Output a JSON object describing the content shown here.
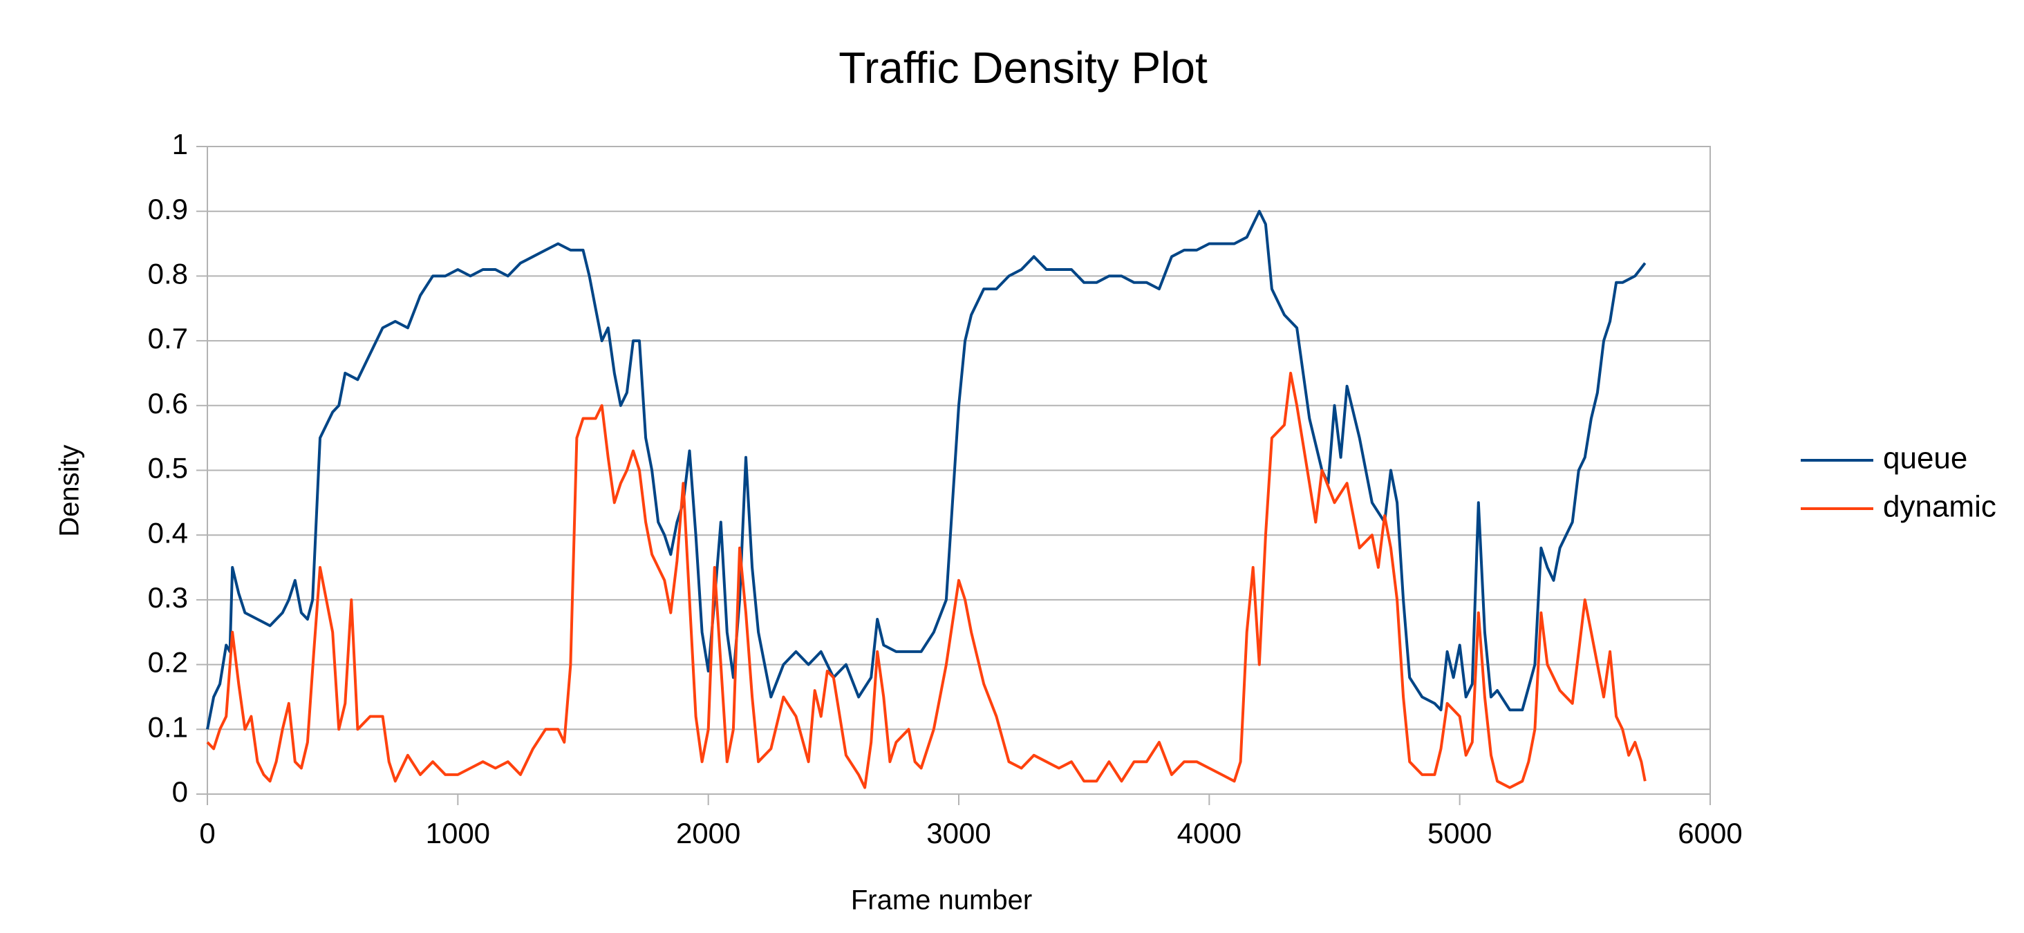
{
  "chart_data": {
    "type": "line",
    "title": "Traffic Density Plot",
    "x_label": "Frame number",
    "y_label": "Density",
    "xlim": [
      0,
      6000
    ],
    "xticks": [
      0,
      1000,
      2000,
      3000,
      4000,
      5000,
      6000
    ],
    "ylim": [
      0,
      1
    ],
    "yticks": [
      0,
      0.1,
      0.2,
      0.3,
      0.4,
      0.5,
      0.6,
      0.7,
      0.8,
      0.9,
      1
    ],
    "grid": true,
    "legend": "right",
    "series": [
      {
        "name": "queue",
        "color": "#004586",
        "x": [
          0,
          25,
          50,
          75,
          90,
          100,
          125,
          150,
          200,
          250,
          300,
          325,
          350,
          375,
          400,
          420,
          450,
          500,
          525,
          550,
          600,
          650,
          700,
          750,
          800,
          850,
          900,
          950,
          1000,
          1050,
          1100,
          1150,
          1200,
          1250,
          1300,
          1350,
          1400,
          1450,
          1500,
          1525,
          1550,
          1575,
          1600,
          1625,
          1650,
          1675,
          1700,
          1725,
          1750,
          1775,
          1800,
          1825,
          1850,
          1875,
          1900,
          1925,
          1950,
          1975,
          2000,
          2025,
          2050,
          2075,
          2100,
          2125,
          2150,
          2175,
          2200,
          2250,
          2300,
          2350,
          2400,
          2450,
          2500,
          2550,
          2600,
          2650,
          2675,
          2700,
          2750,
          2800,
          2850,
          2900,
          2950,
          2975,
          3000,
          3025,
          3050,
          3100,
          3150,
          3200,
          3250,
          3300,
          3350,
          3400,
          3450,
          3500,
          3550,
          3600,
          3650,
          3700,
          3750,
          3800,
          3850,
          3900,
          3950,
          4000,
          4050,
          4100,
          4150,
          4200,
          4225,
          4250,
          4300,
          4350,
          4400,
          4450,
          4475,
          4500,
          4525,
          4550,
          4600,
          4650,
          4700,
          4725,
          4750,
          4775,
          4800,
          4850,
          4900,
          4925,
          4950,
          4975,
          5000,
          5025,
          5050,
          5075,
          5100,
          5125,
          5150,
          5200,
          5250,
          5300,
          5325,
          5350,
          5375,
          5400,
          5450,
          5475,
          5500,
          5525,
          5550,
          5575,
          5600,
          5625,
          5650,
          5700,
          5740
        ],
        "values": [
          0.1,
          0.15,
          0.17,
          0.23,
          0.22,
          0.35,
          0.31,
          0.28,
          0.27,
          0.26,
          0.28,
          0.3,
          0.33,
          0.28,
          0.27,
          0.3,
          0.55,
          0.59,
          0.6,
          0.65,
          0.64,
          0.68,
          0.72,
          0.73,
          0.72,
          0.77,
          0.8,
          0.8,
          0.81,
          0.8,
          0.81,
          0.81,
          0.8,
          0.82,
          0.83,
          0.84,
          0.85,
          0.84,
          0.84,
          0.8,
          0.75,
          0.7,
          0.72,
          0.65,
          0.6,
          0.62,
          0.7,
          0.7,
          0.55,
          0.5,
          0.42,
          0.4,
          0.37,
          0.42,
          0.45,
          0.53,
          0.4,
          0.25,
          0.19,
          0.3,
          0.42,
          0.25,
          0.18,
          0.3,
          0.52,
          0.35,
          0.25,
          0.15,
          0.2,
          0.22,
          0.2,
          0.22,
          0.18,
          0.2,
          0.15,
          0.18,
          0.27,
          0.23,
          0.22,
          0.22,
          0.22,
          0.25,
          0.3,
          0.45,
          0.6,
          0.7,
          0.74,
          0.78,
          0.78,
          0.8,
          0.81,
          0.83,
          0.81,
          0.81,
          0.81,
          0.79,
          0.79,
          0.8,
          0.8,
          0.79,
          0.79,
          0.78,
          0.83,
          0.84,
          0.84,
          0.85,
          0.85,
          0.85,
          0.86,
          0.9,
          0.88,
          0.78,
          0.74,
          0.72,
          0.58,
          0.5,
          0.48,
          0.6,
          0.52,
          0.63,
          0.55,
          0.45,
          0.42,
          0.5,
          0.45,
          0.3,
          0.18,
          0.15,
          0.14,
          0.13,
          0.22,
          0.18,
          0.23,
          0.15,
          0.17,
          0.45,
          0.25,
          0.15,
          0.16,
          0.13,
          0.13,
          0.2,
          0.38,
          0.35,
          0.33,
          0.38,
          0.42,
          0.5,
          0.52,
          0.58,
          0.62,
          0.7,
          0.73,
          0.79,
          0.79,
          0.8,
          0.82
        ]
      },
      {
        "name": "dynamic",
        "color": "#ff420e",
        "x": [
          0,
          25,
          50,
          75,
          100,
          125,
          150,
          175,
          200,
          225,
          250,
          275,
          300,
          325,
          350,
          375,
          400,
          425,
          450,
          475,
          500,
          525,
          550,
          575,
          600,
          650,
          700,
          725,
          750,
          800,
          850,
          900,
          950,
          1000,
          1050,
          1100,
          1150,
          1200,
          1250,
          1300,
          1350,
          1400,
          1425,
          1450,
          1475,
          1500,
          1550,
          1575,
          1600,
          1625,
          1650,
          1675,
          1700,
          1725,
          1750,
          1775,
          1800,
          1825,
          1850,
          1875,
          1900,
          1925,
          1950,
          1975,
          2000,
          2025,
          2050,
          2075,
          2100,
          2125,
          2150,
          2175,
          2200,
          2250,
          2300,
          2350,
          2400,
          2425,
          2450,
          2475,
          2500,
          2550,
          2600,
          2625,
          2650,
          2675,
          2700,
          2725,
          2750,
          2800,
          2825,
          2850,
          2900,
          2950,
          3000,
          3025,
          3050,
          3100,
          3150,
          3200,
          3250,
          3300,
          3350,
          3400,
          3450,
          3500,
          3550,
          3600,
          3650,
          3700,
          3750,
          3800,
          3850,
          3900,
          3950,
          4000,
          4050,
          4100,
          4125,
          4150,
          4175,
          4200,
          4225,
          4250,
          4300,
          4325,
          4350,
          4400,
          4425,
          4450,
          4500,
          4550,
          4600,
          4650,
          4675,
          4700,
          4725,
          4750,
          4775,
          4800,
          4850,
          4900,
          4925,
          4950,
          5000,
          5025,
          5050,
          5075,
          5100,
          5125,
          5150,
          5200,
          5250,
          5275,
          5300,
          5325,
          5350,
          5400,
          5425,
          5450,
          5475,
          5500,
          5525,
          5550,
          5575,
          5600,
          5625,
          5650,
          5675,
          5700,
          5725,
          5740
        ],
        "values": [
          0.08,
          0.07,
          0.1,
          0.12,
          0.25,
          0.17,
          0.1,
          0.12,
          0.05,
          0.03,
          0.02,
          0.05,
          0.1,
          0.14,
          0.05,
          0.04,
          0.08,
          0.22,
          0.35,
          0.3,
          0.25,
          0.1,
          0.14,
          0.3,
          0.1,
          0.12,
          0.12,
          0.05,
          0.02,
          0.06,
          0.03,
          0.05,
          0.03,
          0.03,
          0.04,
          0.05,
          0.04,
          0.05,
          0.03,
          0.07,
          0.1,
          0.1,
          0.08,
          0.2,
          0.55,
          0.58,
          0.58,
          0.6,
          0.52,
          0.45,
          0.48,
          0.5,
          0.53,
          0.5,
          0.42,
          0.37,
          0.35,
          0.33,
          0.28,
          0.36,
          0.48,
          0.3,
          0.12,
          0.05,
          0.1,
          0.35,
          0.2,
          0.05,
          0.1,
          0.38,
          0.28,
          0.15,
          0.05,
          0.07,
          0.15,
          0.12,
          0.05,
          0.16,
          0.12,
          0.19,
          0.18,
          0.06,
          0.03,
          0.01,
          0.08,
          0.22,
          0.15,
          0.05,
          0.08,
          0.1,
          0.05,
          0.04,
          0.1,
          0.2,
          0.33,
          0.3,
          0.25,
          0.17,
          0.12,
          0.05,
          0.04,
          0.06,
          0.05,
          0.04,
          0.05,
          0.02,
          0.02,
          0.05,
          0.02,
          0.05,
          0.05,
          0.08,
          0.03,
          0.05,
          0.05,
          0.04,
          0.03,
          0.02,
          0.05,
          0.25,
          0.35,
          0.2,
          0.4,
          0.55,
          0.57,
          0.65,
          0.6,
          0.48,
          0.42,
          0.5,
          0.45,
          0.48,
          0.38,
          0.4,
          0.35,
          0.43,
          0.38,
          0.3,
          0.15,
          0.05,
          0.03,
          0.03,
          0.07,
          0.14,
          0.12,
          0.06,
          0.08,
          0.28,
          0.15,
          0.06,
          0.02,
          0.01,
          0.02,
          0.05,
          0.1,
          0.28,
          0.2,
          0.16,
          0.15,
          0.14,
          0.22,
          0.3,
          0.25,
          0.2,
          0.15,
          0.22,
          0.12,
          0.1,
          0.06,
          0.08,
          0.05,
          0.02
        ]
      }
    ]
  }
}
